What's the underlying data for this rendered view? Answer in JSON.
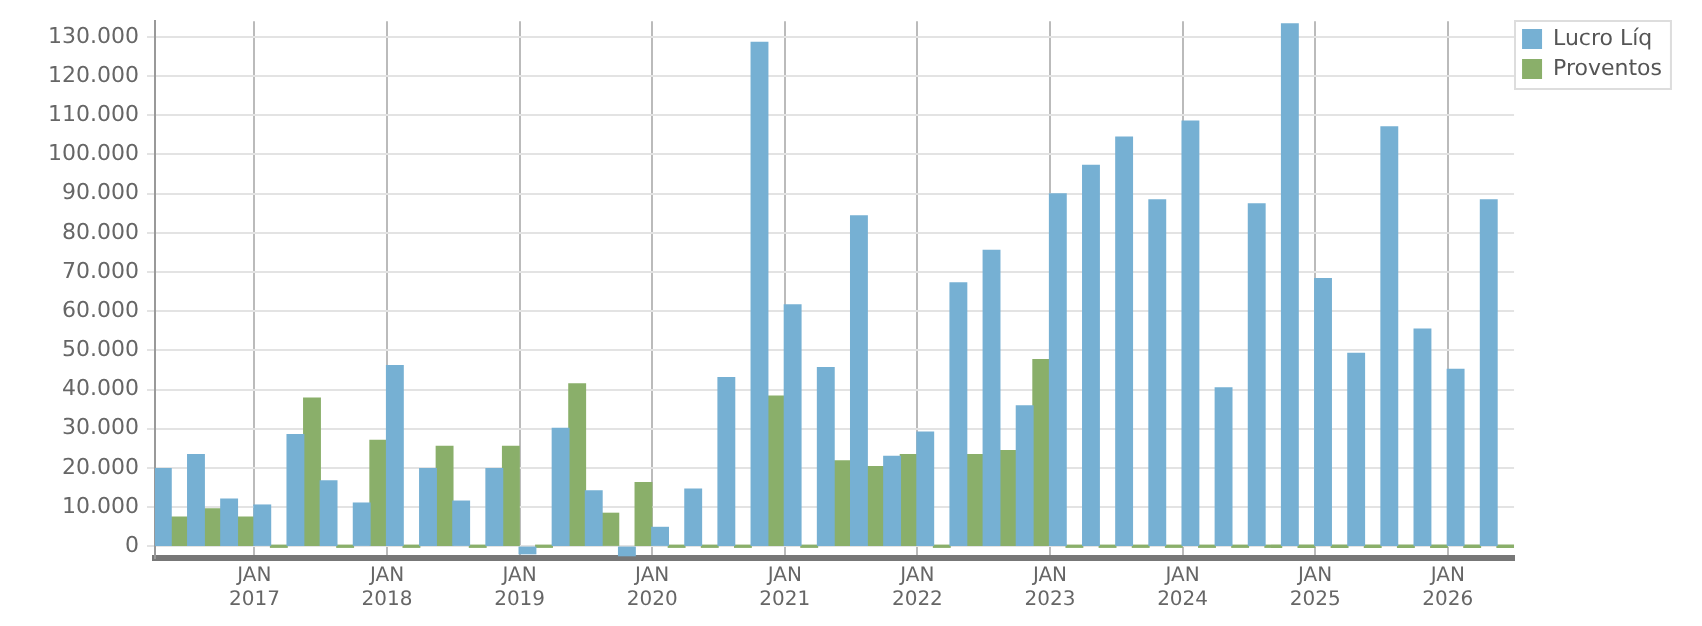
{
  "chart_data": {
    "type": "bar",
    "x": [
      "2016-05-15",
      "2016-08-15",
      "2016-11-15",
      "2017-02-15",
      "2017-05-15",
      "2017-08-15",
      "2017-11-15",
      "2018-02-15",
      "2018-05-15",
      "2018-08-15",
      "2018-11-15",
      "2019-02-15",
      "2019-05-15",
      "2019-08-15",
      "2019-11-15",
      "2020-02-15",
      "2020-05-15",
      "2020-08-15",
      "2020-11-15",
      "2021-02-15",
      "2021-05-15",
      "2021-08-15",
      "2021-11-15",
      "2022-02-15",
      "2022-05-15",
      "2022-08-15",
      "2022-11-15",
      "2023-02-15",
      "2023-05-15",
      "2023-08-15",
      "2023-11-15",
      "2024-02-15",
      "2024-05-15",
      "2024-08-15",
      "2024-11-15",
      "2025-02-15",
      "2025-05-15",
      "2025-08-15",
      "2025-11-15",
      "2026-02-15",
      "2026-05-15"
    ],
    "series": [
      {
        "name": "Lucro Líq",
        "color": "#76b0d3",
        "values": [
          19800,
          23400,
          12000,
          10500,
          28500,
          16700,
          11000,
          46100,
          19800,
          11500,
          19800,
          -1900,
          30100,
          14100,
          -2400,
          4800,
          14600,
          43000,
          128600,
          61600,
          45600,
          84300,
          22900,
          29100,
          67200,
          75500,
          35800,
          89900,
          97200,
          104400,
          88400,
          108500,
          40400,
          87400,
          133300,
          68300,
          49200,
          107000,
          55400,
          45100,
          88400
        ]
      },
      {
        "name": "Proventos",
        "color": "#8aaf6a",
        "values": [
          7400,
          9500,
          7400,
          0,
          37800,
          0,
          27000,
          0,
          25500,
          0,
          25500,
          0,
          41400,
          8400,
          16200,
          0,
          0,
          0,
          38300,
          0,
          21800,
          20300,
          23400,
          0,
          23400,
          24400,
          47600,
          0,
          0,
          0,
          0,
          0,
          0,
          0,
          0,
          0,
          0,
          0,
          0,
          0,
          0
        ]
      }
    ],
    "xlim": [
      "2016-04-01",
      "2026-07-01"
    ],
    "xticks": [
      {
        "value": "2017-01-01",
        "label": "JAN 2017"
      },
      {
        "value": "2018-01-01",
        "label": "JAN 2018"
      },
      {
        "value": "2019-01-01",
        "label": "JAN 2019"
      },
      {
        "value": "2020-01-01",
        "label": "JAN 2020"
      },
      {
        "value": "2021-01-01",
        "label": "JAN 2021"
      },
      {
        "value": "2022-01-01",
        "label": "JAN 2022"
      },
      {
        "value": "2023-01-01",
        "label": "JAN 2023"
      },
      {
        "value": "2024-01-01",
        "label": "JAN 2024"
      },
      {
        "value": "2025-01-01",
        "label": "JAN 2025"
      },
      {
        "value": "2026-01-01",
        "label": "JAN 2026"
      }
    ],
    "ylim": [
      -3000,
      134000
    ],
    "yticks": [
      {
        "value": 0,
        "label": "0"
      },
      {
        "value": 10000,
        "label": "10.000"
      },
      {
        "value": 20000,
        "label": "20.000"
      },
      {
        "value": 30000,
        "label": "30.000"
      },
      {
        "value": 40000,
        "label": "40.000"
      },
      {
        "value": 50000,
        "label": "50.000"
      },
      {
        "value": 60000,
        "label": "60.000"
      },
      {
        "value": 70000,
        "label": "70.000"
      },
      {
        "value": 80000,
        "label": "80.000"
      },
      {
        "value": 90000,
        "label": "90.000"
      },
      {
        "value": 100000,
        "label": "100.000"
      },
      {
        "value": 110000,
        "label": "110.000"
      },
      {
        "value": 120000,
        "label": "120.000"
      },
      {
        "value": 130000,
        "label": "130.000"
      }
    ],
    "grid": true,
    "legend": "top right"
  }
}
